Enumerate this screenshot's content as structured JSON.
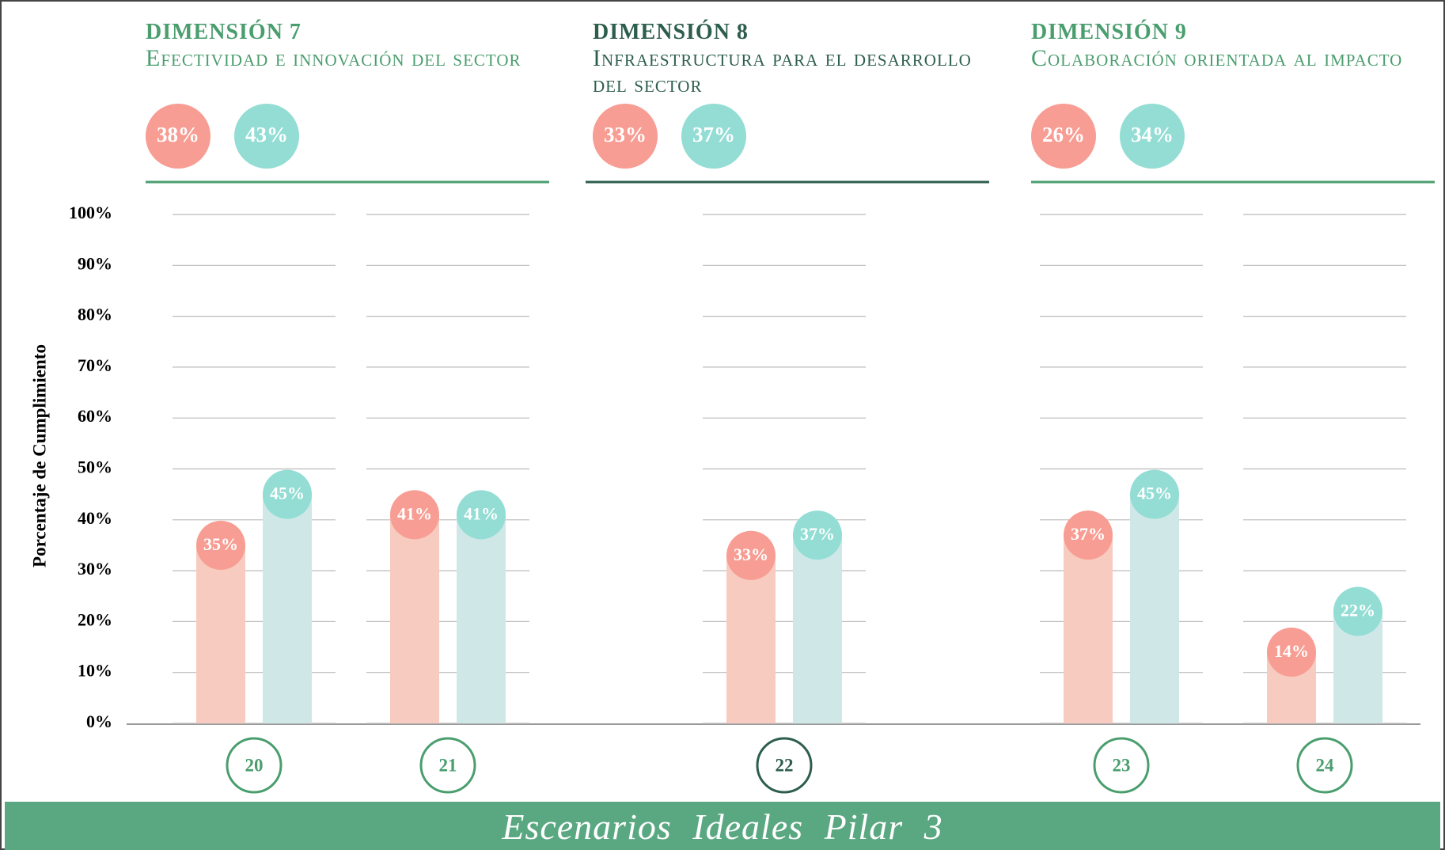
{
  "chart_data": {
    "type": "bar",
    "y_label": "Porcentaje de Cumplimiento",
    "categories": [
      "20",
      "21",
      "22",
      "23",
      "24"
    ],
    "series": [
      {
        "color": "#f7cbbf",
        "label_color": "#f79d93",
        "values": [
          35,
          41,
          33,
          37,
          14
        ],
        "value_labels": [
          "35%",
          "41%",
          "33%",
          "37%",
          "14%"
        ]
      },
      {
        "color": "#cfe8e7",
        "label_color": "#93ddd4",
        "values": [
          45,
          41,
          37,
          45,
          22
        ],
        "value_labels": [
          "45%",
          "41%",
          "37%",
          "45%",
          "22%"
        ]
      }
    ],
    "ylim": [
      0,
      100
    ],
    "yticks": [
      {
        "value": 0,
        "label": "0%"
      },
      {
        "value": 10,
        "label": "10%"
      },
      {
        "value": 20,
        "label": "20%"
      },
      {
        "value": 30,
        "label": "30%"
      },
      {
        "value": 40,
        "label": "40%"
      },
      {
        "value": 50,
        "label": "50%"
      },
      {
        "value": 60,
        "label": "60%"
      },
      {
        "value": 70,
        "label": "70%"
      },
      {
        "value": 80,
        "label": "80%"
      },
      {
        "value": 90,
        "label": "90%"
      },
      {
        "value": 100,
        "label": "100%"
      }
    ],
    "grid": true,
    "groups": [
      {
        "label": "DIMENSIÓN 7",
        "title": "Efectividad e innovación del sector",
        "color": "#4a9e6e",
        "categories": [
          0,
          1
        ],
        "values": [
          38,
          43
        ],
        "value_labels": [
          "38%",
          "43%"
        ]
      },
      {
        "label": "DIMENSIÓN 8",
        "title": "Infraestructura para el desarrollo del sector",
        "color": "#2d5e4c",
        "categories": [
          2
        ],
        "values": [
          33,
          37
        ],
        "value_labels": [
          "33%",
          "37%"
        ]
      },
      {
        "label": "DIMENSIÓN 9",
        "title": "Colaboración orientada al impacto",
        "color": "#4a9e6e",
        "categories": [
          3,
          4
        ],
        "values": [
          26,
          34
        ],
        "value_labels": [
          "26%",
          "34%"
        ]
      }
    ],
    "footer": "Escenarios Ideales Pilar 3"
  }
}
